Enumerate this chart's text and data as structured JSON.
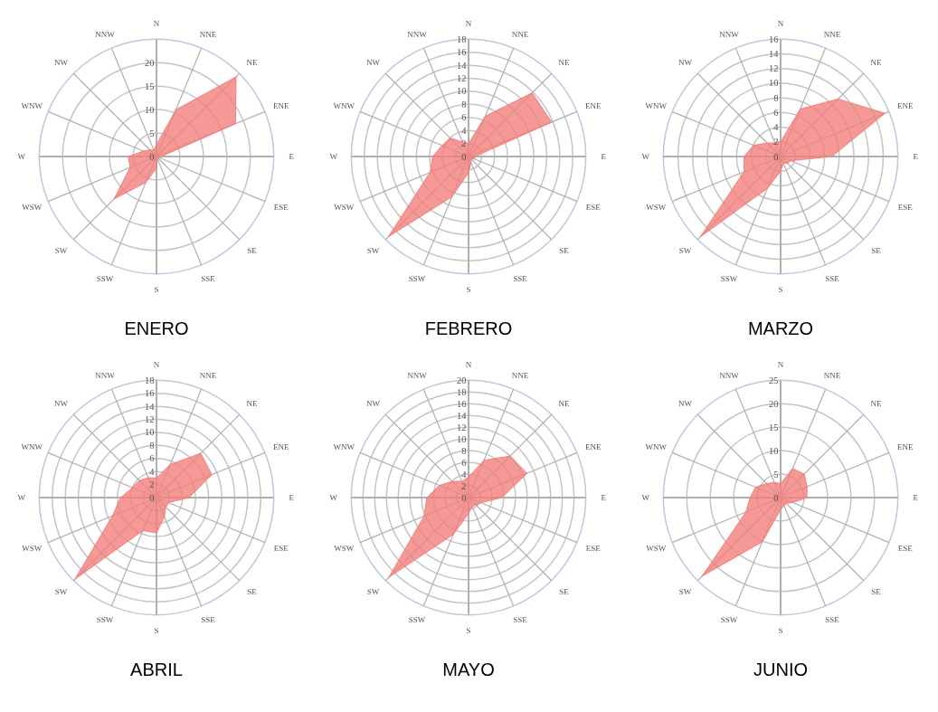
{
  "chart_data": [
    {
      "type": "radar",
      "title": "ENERO",
      "categories": [
        "N",
        "NNE",
        "NE",
        "ENE",
        "E",
        "ESE",
        "SE",
        "SSE",
        "S",
        "SSW",
        "SW",
        "WSW",
        "W",
        "WNW",
        "NW",
        "NNW"
      ],
      "ylim": [
        0,
        25
      ],
      "yticks": [
        0,
        5,
        10,
        15,
        20
      ],
      "series": [
        {
          "color": "#f27f7c",
          "values": [
            2.5,
            10.8,
            24,
            18.2,
            1,
            0.5,
            0.5,
            0.5,
            2.5,
            6,
            12.8,
            6.1,
            6,
            3,
            2,
            1.5
          ]
        }
      ]
    },
    {
      "type": "radar",
      "title": "FEBRERO",
      "categories": [
        "N",
        "NNE",
        "NE",
        "ENE",
        "E",
        "ESE",
        "SE",
        "SSE",
        "S",
        "SSW",
        "SW",
        "WSW",
        "W",
        "WNW",
        "NW",
        "NNW"
      ],
      "ylim": [
        0,
        18
      ],
      "yticks": [
        0,
        2,
        4,
        6,
        8,
        10,
        12,
        14,
        16,
        18
      ],
      "series": [
        {
          "color": "#f27f7c",
          "values": [
            2,
            6.7,
            13.8,
            13.8,
            1,
            1,
            0.5,
            1,
            2.5,
            6.7,
            17.4,
            6.4,
            5.5,
            4.4,
            4,
            2.4
          ]
        }
      ]
    },
    {
      "type": "radar",
      "title": "MARZO",
      "categories": [
        "N",
        "NNE",
        "NE",
        "ENE",
        "E",
        "ESE",
        "SE",
        "SSE",
        "S",
        "SSW",
        "SW",
        "WSW",
        "W",
        "WNW",
        "NW",
        "NNW"
      ],
      "ylim": [
        0,
        16
      ],
      "yticks": [
        0,
        2,
        4,
        6,
        8,
        10,
        12,
        14,
        16
      ],
      "series": [
        {
          "color": "#f27f7c",
          "values": [
            2,
            7,
            11.1,
            15.4,
            7,
            1.5,
            1.3,
            1,
            2,
            4.7,
            15.5,
            5.4,
            5,
            4,
            2.6,
            2
          ]
        }
      ]
    },
    {
      "type": "radar",
      "title": "ABRIL",
      "categories": [
        "N",
        "NNE",
        "NE",
        "ENE",
        "E",
        "ESE",
        "SE",
        "SSE",
        "S",
        "SSW",
        "SW",
        "WSW",
        "W",
        "WNW",
        "NW",
        "NNW"
      ],
      "ylim": [
        0,
        18
      ],
      "yticks": [
        0,
        2,
        4,
        6,
        8,
        10,
        12,
        14,
        16,
        18
      ],
      "series": [
        {
          "color": "#f27f7c",
          "values": [
            3,
            5.5,
            9.6,
            9.2,
            5,
            2,
            2,
            3.2,
            5.4,
            5.5,
            17.7,
            7.3,
            5.5,
            4,
            3.7,
            3.3
          ]
        }
      ]
    },
    {
      "type": "radar",
      "title": "MAYO",
      "categories": [
        "N",
        "NNE",
        "NE",
        "ENE",
        "E",
        "ESE",
        "SE",
        "SSE",
        "S",
        "SSW",
        "SW",
        "WSW",
        "W",
        "WNW",
        "NW",
        "NNW"
      ],
      "ylim": [
        0,
        20
      ],
      "yticks": [
        0,
        2,
        4,
        6,
        8,
        10,
        12,
        14,
        16,
        18,
        20
      ],
      "series": [
        {
          "color": "#f27f7c",
          "values": [
            3.5,
            6.9,
            10,
            10.8,
            5.7,
            2.3,
            1.8,
            1.6,
            2.7,
            6.8,
            19.2,
            8.2,
            7.1,
            5.4,
            3.9,
            3
          ]
        }
      ]
    },
    {
      "type": "radar",
      "title": "JUNIO",
      "categories": [
        "N",
        "NNE",
        "NE",
        "ENE",
        "E",
        "ESE",
        "SE",
        "SSE",
        "S",
        "SSW",
        "SW",
        "WSW",
        "W",
        "WNW",
        "NW",
        "NNW"
      ],
      "ylim": [
        0,
        25
      ],
      "yticks": [
        0,
        5,
        10,
        15,
        20,
        25
      ],
      "series": [
        {
          "color": "#f27f7c",
          "values": [
            3,
            6.7,
            7.1,
            6.1,
            5.6,
            2.8,
            1.7,
            1.9,
            2.6,
            10.2,
            23.7,
            8,
            6.5,
            5.8,
            4.2,
            3.5
          ]
        }
      ]
    }
  ]
}
